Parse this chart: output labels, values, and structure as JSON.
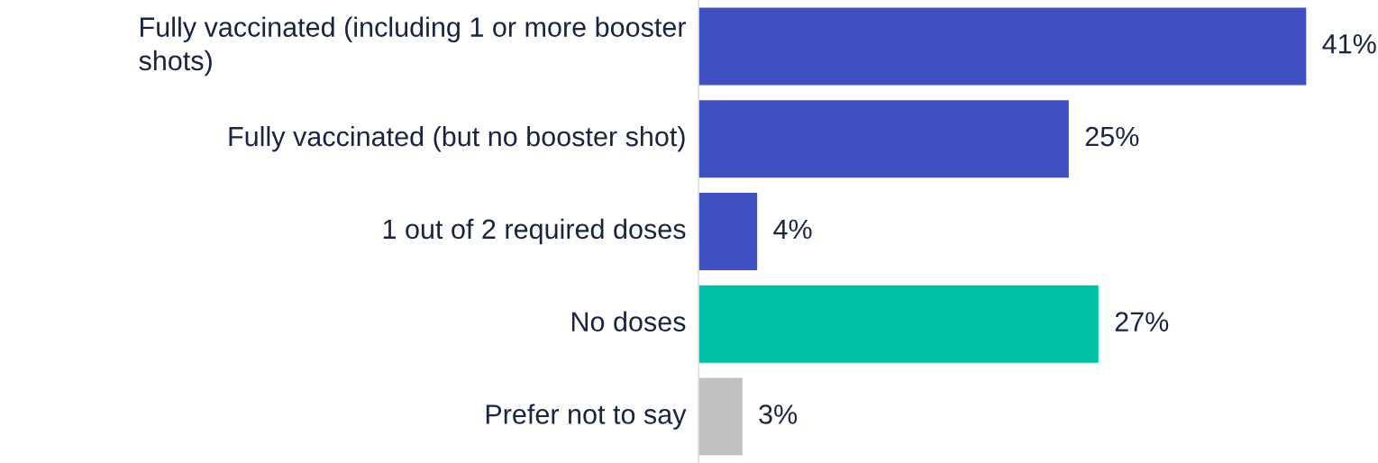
{
  "chart_data": {
    "type": "bar",
    "orientation": "horizontal",
    "categories": [
      "Fully vaccinated (including 1 or more booster\nshots)",
      "Fully vaccinated (but no booster shot)",
      "1 out of 2 required doses",
      "No doses",
      "Prefer not to say"
    ],
    "values": [
      41,
      25,
      4,
      27,
      3
    ],
    "colors": [
      "#3f51c1",
      "#3f51c1",
      "#3f51c1",
      "#00bfa5",
      "#c0c0c0"
    ],
    "value_labels": [
      "41%",
      "25%",
      "4%",
      "27%",
      "3%"
    ],
    "grid": false,
    "legend": false
  }
}
